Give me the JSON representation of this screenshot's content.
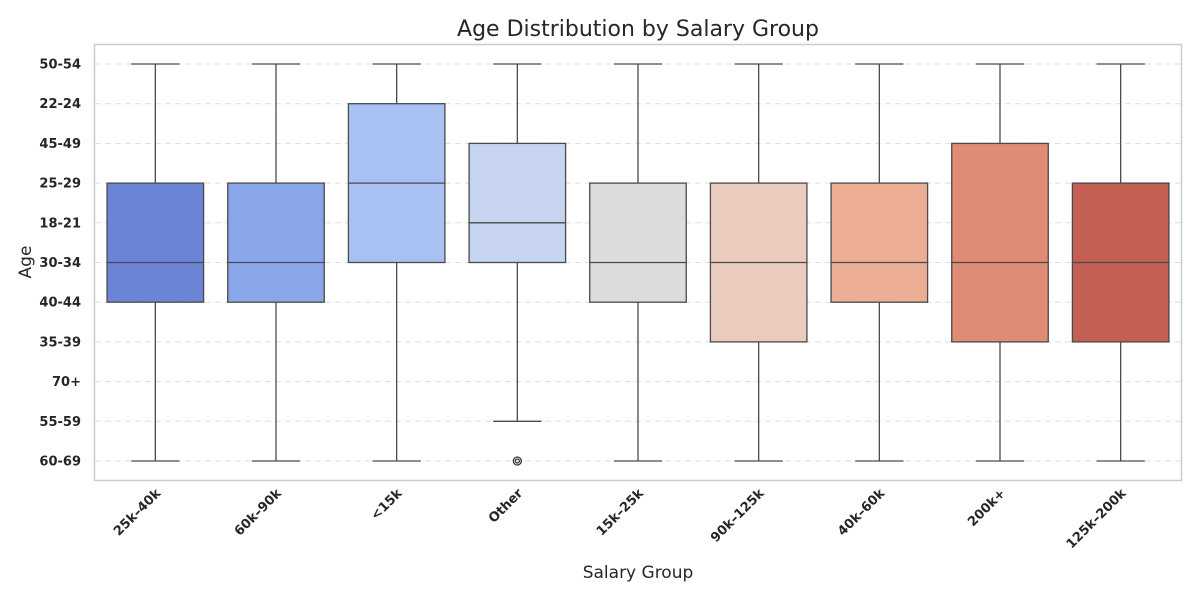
{
  "chart_data": {
    "type": "box",
    "title": "Age Distribution by Salary Group",
    "xlabel": "Salary Group",
    "ylabel": "Age",
    "y_categories_top_to_bottom": [
      "50-54",
      "22-24",
      "45-49",
      "25-29",
      "18-21",
      "30-34",
      "40-44",
      "35-39",
      "70+",
      "55-59",
      "60-69"
    ],
    "grid": "horizontal dashed",
    "groups": [
      {
        "name": "25k–40k",
        "color": "#6b84d6",
        "whisker_high": "50-54",
        "q3": "25-29",
        "median": "30-34",
        "q1": "40-44",
        "whisker_low": "60-69",
        "outliers": []
      },
      {
        "name": "60k–90k",
        "color": "#8aa6ea",
        "whisker_high": "50-54",
        "q3": "25-29",
        "median": "30-34",
        "q1": "40-44",
        "whisker_low": "60-69",
        "outliers": []
      },
      {
        "name": "<15k",
        "color": "#a9c0f3",
        "whisker_high": "50-54",
        "q3": "22-24",
        "median": "25-29",
        "q1": "30-34",
        "whisker_low": "60-69",
        "outliers": []
      },
      {
        "name": "Other",
        "color": "#c6d4ef",
        "whisker_high": "50-54",
        "q3": "45-49",
        "median": "18-21",
        "q1": "30-34",
        "whisker_low": "55-59",
        "outliers": [
          "60-69"
        ]
      },
      {
        "name": "15k–25k",
        "color": "#dcdcdc",
        "whisker_high": "50-54",
        "q3": "25-29",
        "median": "30-34",
        "q1": "40-44",
        "whisker_low": "60-69",
        "outliers": []
      },
      {
        "name": "90k–125k",
        "color": "#eacbbd",
        "whisker_high": "50-54",
        "q3": "25-29",
        "median": "30-34",
        "q1": "35-39",
        "whisker_low": "60-69",
        "outliers": []
      },
      {
        "name": "40k–60k",
        "color": "#ebae95",
        "whisker_high": "50-54",
        "q3": "25-29",
        "median": "30-34",
        "q1": "40-44",
        "whisker_low": "60-69",
        "outliers": []
      },
      {
        "name": "200k+",
        "color": "#de8c75",
        "whisker_high": "50-54",
        "q3": "45-49",
        "median": "30-34",
        "q1": "35-39",
        "whisker_low": "60-69",
        "outliers": []
      },
      {
        "name": "125k–200k",
        "color": "#c45f54",
        "whisker_high": "50-54",
        "q3": "25-29",
        "median": "30-34",
        "q1": "35-39",
        "whisker_low": "60-69",
        "outliers": []
      }
    ]
  }
}
